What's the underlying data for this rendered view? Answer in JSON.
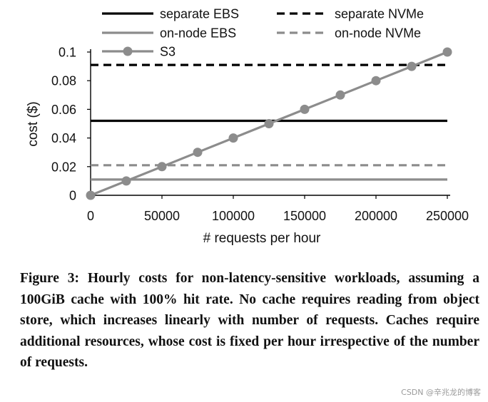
{
  "chart_data": {
    "type": "line",
    "xlabel": "# requests per hour",
    "ylabel": "cost ($)",
    "xlim": [
      0,
      250000
    ],
    "ylim": [
      0,
      0.1
    ],
    "x_ticks": [
      0,
      50000,
      100000,
      150000,
      200000,
      250000
    ],
    "x_tick_labels": [
      "0",
      "50000",
      "100000",
      "150000",
      "200000",
      "250000"
    ],
    "y_ticks": [
      0,
      0.02,
      0.04,
      0.06,
      0.08,
      0.1
    ],
    "y_tick_labels": [
      "0",
      "0.02",
      "0.04",
      "0.06",
      "0.08",
      "0.1"
    ],
    "legend_position": "top",
    "series": [
      {
        "name": "separate EBS",
        "color": "#000000",
        "dash": "solid",
        "markers": false,
        "x": [
          0,
          250000
        ],
        "y": [
          0.052,
          0.052
        ]
      },
      {
        "name": "separate NVMe",
        "color": "#000000",
        "dash": "dashed",
        "markers": false,
        "x": [
          0,
          250000
        ],
        "y": [
          0.091,
          0.091
        ]
      },
      {
        "name": "on-node EBS",
        "color": "#8c8c8c",
        "dash": "solid",
        "markers": false,
        "x": [
          0,
          250000
        ],
        "y": [
          0.011,
          0.011
        ]
      },
      {
        "name": "on-node NVMe",
        "color": "#8c8c8c",
        "dash": "dashed",
        "markers": false,
        "x": [
          0,
          250000
        ],
        "y": [
          0.021,
          0.021
        ]
      },
      {
        "name": "S3",
        "color": "#8c8c8c",
        "dash": "solid",
        "markers": true,
        "x": [
          0,
          25000,
          50000,
          75000,
          100000,
          125000,
          150000,
          175000,
          200000,
          225000,
          250000
        ],
        "y": [
          0,
          0.01,
          0.02,
          0.03,
          0.04,
          0.05,
          0.06,
          0.07,
          0.08,
          0.09,
          0.1
        ]
      }
    ]
  },
  "caption": "Figure 3: Hourly costs for non-latency-sensitive workloads, assuming a 100GiB cache with 100% hit rate. No cache requires reading from object store, which increases linearly with number of requests. Caches require additional resources, whose cost is fixed per hour irrespective of the number of requests.",
  "watermark": "CSDN @辛兆龙的博客"
}
